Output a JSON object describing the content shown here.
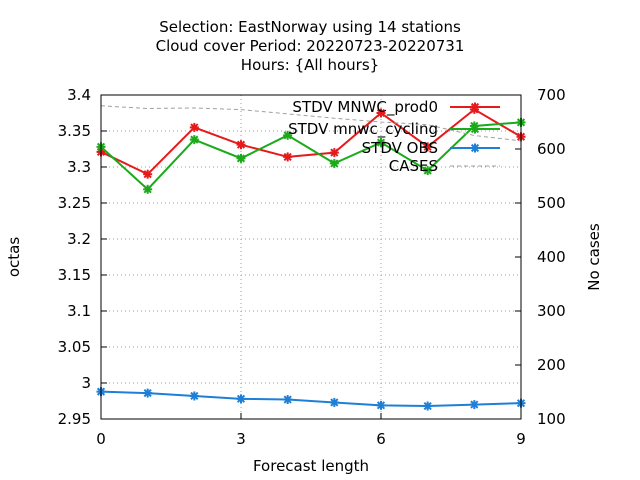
{
  "chart_data": {
    "type": "line",
    "title_lines": [
      "Selection: EastNorway using    14 stations",
      "Cloud cover   Period: 20220723-20220731",
      "Hours: {All hours}"
    ],
    "xlabel": "Forecast length",
    "ylabel": "octas",
    "y2label": "No cases",
    "xlim": [
      0,
      9
    ],
    "ylim": [
      2.95,
      3.4
    ],
    "y2lim": [
      100,
      700
    ],
    "x_ticks": [
      0,
      3,
      6,
      9
    ],
    "y_ticks": [
      "2.95",
      "3",
      "3.05",
      "3.1",
      "3.15",
      "3.2",
      "3.25",
      "3.3",
      "3.35",
      "3.4"
    ],
    "y2_ticks": [
      "100",
      "200",
      "300",
      "400",
      "500",
      "600",
      "700"
    ],
    "grid": true,
    "legend_position": "top-right",
    "x": [
      0,
      1,
      2,
      3,
      4,
      5,
      6,
      7,
      8,
      9
    ],
    "series": [
      {
        "name": "STDV MNWC_prod0",
        "color": "#e41a1c",
        "marker": "star",
        "axis": "left",
        "values": [
          3.321,
          3.29,
          3.355,
          3.331,
          3.314,
          3.32,
          3.375,
          3.328,
          3.38,
          3.342
        ]
      },
      {
        "name": "STDV mnwc_cycling",
        "color": "#1aaa1a",
        "marker": "star",
        "axis": "left",
        "values": [
          3.328,
          3.269,
          3.338,
          3.312,
          3.344,
          3.305,
          3.334,
          3.295,
          3.357,
          3.362
        ]
      },
      {
        "name": "STDV OBS",
        "color": "#1e7fd8",
        "marker": "star",
        "axis": "left",
        "values": [
          2.988,
          2.986,
          2.982,
          2.978,
          2.977,
          2.973,
          2.969,
          2.968,
          2.97,
          2.972
        ]
      },
      {
        "name": "CASES",
        "color": "#a0a0a0",
        "marker": "none",
        "dashed": true,
        "axis": "right",
        "values": [
          680,
          675,
          676,
          673,
          665,
          657,
          650,
          645,
          625,
          615
        ]
      }
    ]
  }
}
